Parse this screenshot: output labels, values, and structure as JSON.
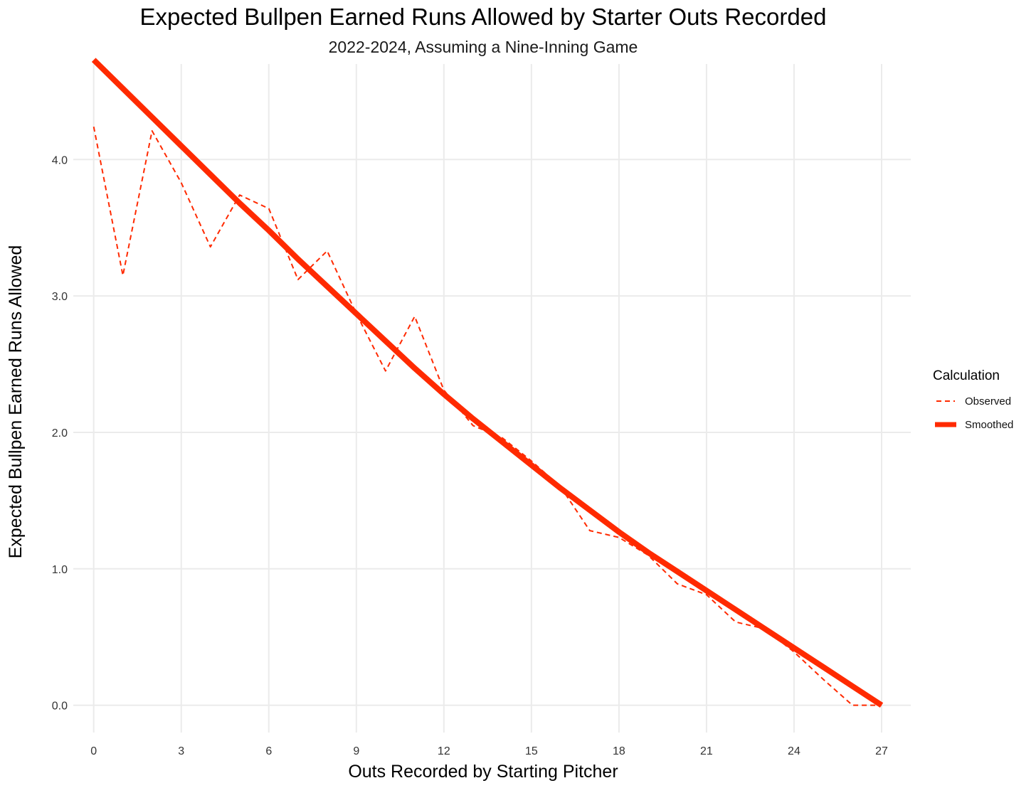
{
  "chart_data": {
    "type": "line",
    "title": "Expected Bullpen Earned Runs Allowed by Starter Outs Recorded",
    "subtitle": "2022-2024, Assuming a Nine-Inning Game",
    "xlabel": "Outs Recorded by Starting Pitcher",
    "ylabel": "Expected Bullpen Earned Runs Allowed",
    "xlim": [
      -0.7,
      28.0
    ],
    "ylim": [
      -0.2,
      4.7
    ],
    "x_ticks": [
      0,
      3,
      6,
      9,
      12,
      15,
      18,
      21,
      24,
      27
    ],
    "y_ticks": [
      0.0,
      1.0,
      2.0,
      3.0,
      4.0
    ],
    "y_tick_labels": [
      "0.0",
      "1.0",
      "2.0",
      "3.0",
      "4.0"
    ],
    "grid": true,
    "legend": {
      "title": "Calculation",
      "placement": "right",
      "entries": [
        "Observed",
        "Smoothed"
      ]
    },
    "colors": {
      "series": "#ff2a00",
      "grid": "#ebebeb"
    },
    "series": [
      {
        "name": "Observed",
        "style": "dashed",
        "x": [
          0,
          1,
          2,
          3,
          4,
          5,
          6,
          7,
          8,
          9,
          10,
          11,
          12,
          13,
          14,
          15,
          16,
          17,
          18,
          19,
          20,
          21,
          22,
          23,
          24,
          25,
          26,
          27
        ],
        "y": [
          4.24,
          3.15,
          4.21,
          3.83,
          3.36,
          3.74,
          3.64,
          3.12,
          3.33,
          2.87,
          2.45,
          2.85,
          2.31,
          2.05,
          1.96,
          1.79,
          1.6,
          1.28,
          1.23,
          1.1,
          0.89,
          0.81,
          0.61,
          0.56,
          0.39,
          0.19,
          0.0,
          0.0
        ]
      },
      {
        "name": "Smoothed",
        "style": "solid",
        "x": [
          0,
          1,
          2,
          3,
          4,
          5,
          6,
          7,
          8,
          9,
          10,
          11,
          12,
          13,
          14,
          15,
          16,
          17,
          18,
          19,
          20,
          21,
          22,
          23,
          24,
          25,
          26,
          27
        ],
        "y": [
          4.73,
          4.52,
          4.31,
          4.1,
          3.89,
          3.68,
          3.48,
          3.27,
          3.07,
          2.87,
          2.67,
          2.47,
          2.28,
          2.1,
          1.93,
          1.76,
          1.59,
          1.43,
          1.27,
          1.12,
          0.98,
          0.84,
          0.7,
          0.56,
          0.42,
          0.28,
          0.14,
          0.0
        ]
      }
    ]
  }
}
